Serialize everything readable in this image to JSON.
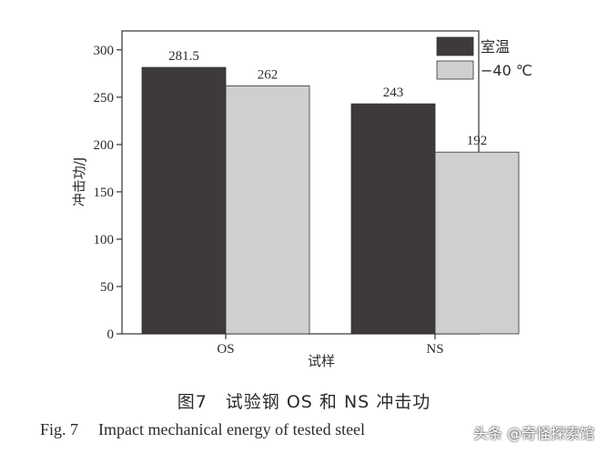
{
  "chart_data": {
    "type": "bar",
    "categories": [
      "OS",
      "NS"
    ],
    "series": [
      {
        "name": "室温",
        "values": [
          281.5,
          243
        ],
        "color": "#3e3a3b"
      },
      {
        "name": "−40 ℃",
        "values": [
          262,
          192
        ],
        "color": "#cfcfcf"
      }
    ],
    "value_labels": [
      [
        "281.5",
        "243"
      ],
      [
        "262",
        "192"
      ]
    ],
    "xlabel": "试样",
    "ylabel": "冲击功/J",
    "ylim": [
      0,
      320
    ],
    "yticks": [
      0,
      50,
      100,
      150,
      200,
      250,
      300
    ],
    "legend_position": "top-right",
    "grid": false
  },
  "caption": {
    "cn": "图7　试验钢 OS 和 NS 冲击功",
    "en_num": "Fig. 7",
    "en_text": "Impact mechanical energy of tested steel"
  },
  "watermark": "头条 @奇怪探索馆"
}
